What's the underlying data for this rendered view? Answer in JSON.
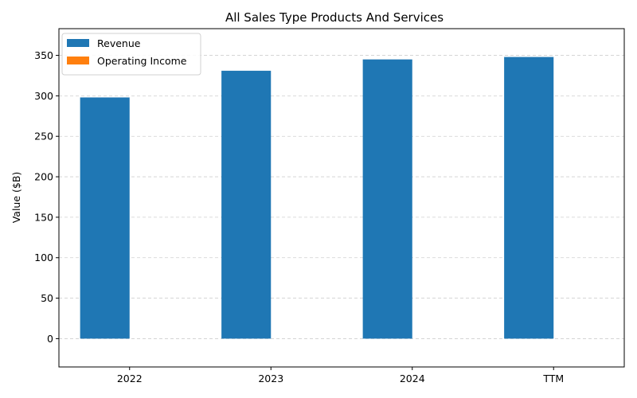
{
  "chart_data": {
    "type": "bar",
    "title": "All Sales Type Products And Services",
    "xlabel": "",
    "ylabel": "Value ($B)",
    "categories": [
      "2022",
      "2023",
      "2024",
      "TTM"
    ],
    "series": [
      {
        "name": "Revenue",
        "color": "#1f77b4",
        "values": [
          298,
          331,
          345,
          348
        ]
      },
      {
        "name": "Operating Income",
        "color": "#ff7f0e",
        "values": [
          0,
          0,
          0,
          0
        ]
      }
    ],
    "ylim": [
      -35,
      383
    ],
    "yticks": [
      0,
      50,
      100,
      150,
      200,
      250,
      300,
      350
    ],
    "grid": true,
    "legend_position": "top-left"
  }
}
